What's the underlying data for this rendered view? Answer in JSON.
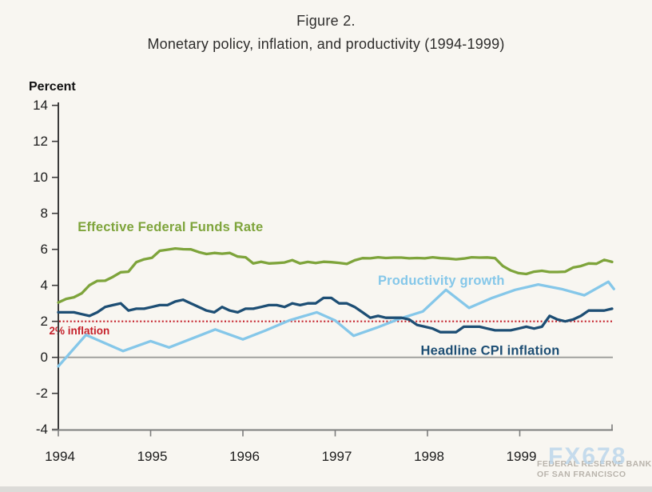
{
  "figure": {
    "label": "Figure 2.",
    "title": "Monetary policy, inflation, and productivity (1994-1999)"
  },
  "y_axis": {
    "unit_label": "Percent",
    "ticks": [
      14,
      12,
      10,
      8,
      6,
      4,
      2,
      0,
      -2,
      -4
    ]
  },
  "x_axis": {
    "ticks": [
      1994,
      1995,
      1996,
      1997,
      1998,
      1999
    ]
  },
  "reference_line": {
    "label": "2% inflation",
    "value": 2,
    "color": "#c5202a",
    "style": "dotted",
    "label_x": 1993.9,
    "label_y": 1.28
  },
  "watermark": {
    "brand": "FX678",
    "org_line1": "FEDERAL RESERVE BANK",
    "org_line2": "OF SAN FRANCISCO"
  },
  "colors": {
    "background": "#f8f6f1",
    "y_axis": "#3b3b3b",
    "x_axis": "#7d7d7d",
    "zero_line": "#9c9c99",
    "tick_text": "#1c1c1c",
    "funds_rate": "#7ea43b",
    "productivity": "#85c7e9",
    "cpi": "#1d4e74",
    "reference": "#c5202a"
  },
  "chart_data": {
    "type": "line",
    "title": "Figure 2. Monetary policy, inflation, and productivity (1994-1999)",
    "ylabel": "Percent",
    "ylim": [
      -4,
      14
    ],
    "xlim": [
      1994,
      2000
    ],
    "y_tick_step": 2,
    "grid": false,
    "zero_line": true,
    "legend_position": "inline-labels",
    "series": [
      {
        "name": "Effective Federal Funds Rate",
        "color": "#7ea43b",
        "frequency": "monthly",
        "x_start": 1994.0,
        "x_end": 2000.0,
        "values": [
          3.05,
          3.25,
          3.34,
          3.56,
          4.01,
          4.25,
          4.26,
          4.47,
          4.73,
          4.76,
          5.29,
          5.45,
          5.53,
          5.92,
          5.98,
          6.05,
          6.01,
          6.0,
          5.85,
          5.74,
          5.8,
          5.76,
          5.8,
          5.6,
          5.56,
          5.22,
          5.31,
          5.22,
          5.24,
          5.27,
          5.4,
          5.22,
          5.3,
          5.24,
          5.31,
          5.29,
          5.25,
          5.19,
          5.39,
          5.51,
          5.5,
          5.56,
          5.52,
          5.54,
          5.54,
          5.5,
          5.52,
          5.5,
          5.56,
          5.51,
          5.49,
          5.45,
          5.49,
          5.56,
          5.54,
          5.55,
          5.51,
          5.07,
          4.83,
          4.68,
          4.63,
          4.76,
          4.81,
          4.74,
          4.74,
          4.76,
          4.99,
          5.07,
          5.22,
          5.2,
          5.42,
          5.3
        ]
      },
      {
        "name": "Productivity growth",
        "color": "#85c7e9",
        "frequency": "quarterly",
        "x": [
          1994.0,
          1994.3,
          1994.7,
          1995.0,
          1995.2,
          1995.45,
          1995.7,
          1996.0,
          1996.25,
          1996.5,
          1996.8,
          1997.0,
          1997.2,
          1997.45,
          1997.7,
          1997.95,
          1998.2,
          1998.45,
          1998.7,
          1998.95,
          1999.2,
          1999.45,
          1999.7,
          1999.96,
          2000.02
        ],
        "values": [
          -0.5,
          1.25,
          0.35,
          0.9,
          0.55,
          1.05,
          1.55,
          1.0,
          1.5,
          2.05,
          2.5,
          2.05,
          1.2,
          1.65,
          2.15,
          2.55,
          3.75,
          2.75,
          3.3,
          3.75,
          4.05,
          3.8,
          3.45,
          4.2,
          3.8
        ]
      },
      {
        "name": "Headline CPI inflation",
        "color": "#1d4e74",
        "frequency": "monthly",
        "x_start": 1994.0,
        "x_end": 2000.0,
        "values": [
          2.5,
          2.5,
          2.5,
          2.4,
          2.3,
          2.5,
          2.8,
          2.9,
          3.0,
          2.6,
          2.7,
          2.7,
          2.8,
          2.9,
          2.9,
          3.1,
          3.2,
          3.0,
          2.8,
          2.6,
          2.5,
          2.8,
          2.6,
          2.5,
          2.7,
          2.7,
          2.8,
          2.9,
          2.9,
          2.8,
          3.0,
          2.9,
          3.0,
          3.0,
          3.3,
          3.3,
          3.0,
          3.0,
          2.8,
          2.5,
          2.2,
          2.3,
          2.2,
          2.2,
          2.2,
          2.1,
          1.8,
          1.7,
          1.6,
          1.4,
          1.4,
          1.4,
          1.7,
          1.7,
          1.7,
          1.6,
          1.5,
          1.5,
          1.5,
          1.6,
          1.7,
          1.6,
          1.7,
          2.3,
          2.1,
          2.0,
          2.1,
          2.3,
          2.6,
          2.6,
          2.6,
          2.7
        ]
      }
    ],
    "annotations": [
      {
        "text": "Effective Federal Funds Rate",
        "color": "#7ea43b",
        "x": 1994.21,
        "y": 7.0,
        "anchor": "start",
        "size": 16.5
      },
      {
        "text": "Productivity growth",
        "color": "#85c7e9",
        "x": 1998.15,
        "y": 4.03,
        "anchor": "middle",
        "size": 16.5
      },
      {
        "text": "Headline CPI inflation",
        "color": "#1d4e74",
        "x": 1998.68,
        "y": 0.14,
        "anchor": "middle",
        "size": 16.5
      }
    ]
  }
}
